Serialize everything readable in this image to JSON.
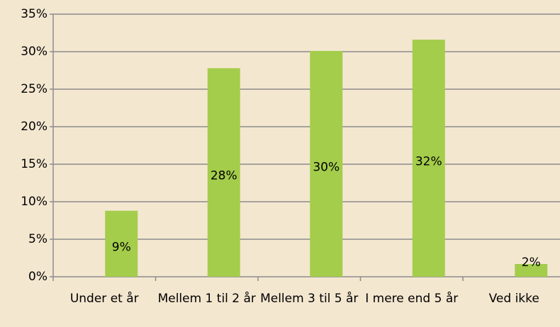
{
  "chart_data": {
    "type": "bar",
    "categories": [
      "Under et år",
      "Mellem 1 til 2 år",
      "Mellem 3 til 5 år",
      "I mere end 5 år",
      "Ved ikke"
    ],
    "values": [
      8.8,
      27.8,
      30.1,
      31.6,
      1.7
    ],
    "value_labels": [
      "9%",
      "28%",
      "30%",
      "32%",
      "2%"
    ],
    "color": "#a4cd4b",
    "ylim": [
      0,
      35
    ],
    "yticks": [
      {
        "value": 0,
        "label": "0%"
      },
      {
        "value": 5,
        "label": "5%"
      },
      {
        "value": 10,
        "label": "10%"
      },
      {
        "value": 15,
        "label": "15%"
      },
      {
        "value": 20,
        "label": "20%"
      },
      {
        "value": 25,
        "label": "25%"
      },
      {
        "value": 30,
        "label": "30%"
      },
      {
        "value": 35,
        "label": "35%"
      }
    ],
    "grid": true
  }
}
